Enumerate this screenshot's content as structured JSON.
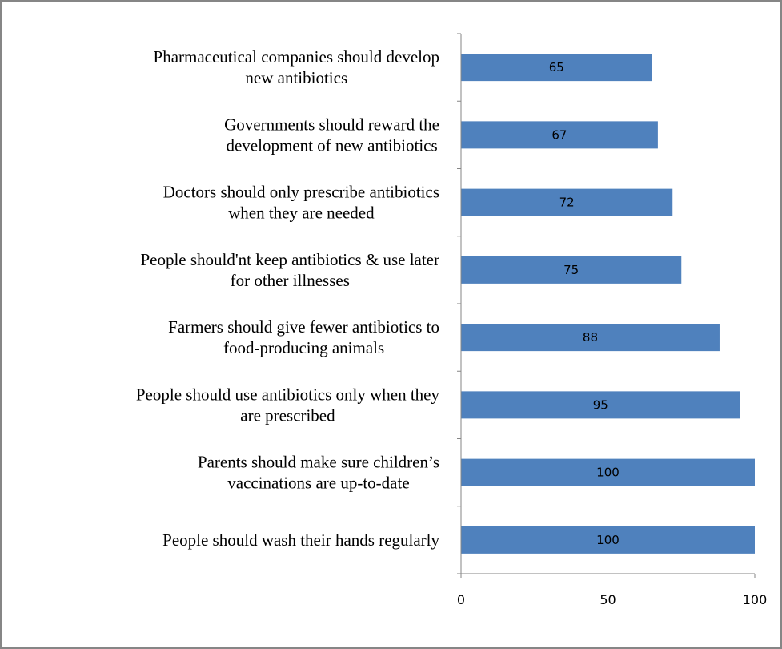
{
  "chart_data": {
    "type": "bar",
    "orientation": "horizontal",
    "title": "",
    "xlabel": "",
    "ylabel": "",
    "xlim": [
      0,
      100
    ],
    "x_ticks": [
      "0",
      "50",
      "100"
    ],
    "x_tick_values": [
      0,
      50,
      100
    ],
    "grid": false,
    "legend": "none",
    "bar_color": "#4F81BD",
    "categories": [
      [
        "Pharmaceutical companies should develop",
        "new antibiotics"
      ],
      [
        "Governments should reward the",
        "development of new antibiotics"
      ],
      [
        "Doctors should only prescribe antibiotics",
        "when they are needed"
      ],
      [
        "People should'nt keep antibiotics & use later",
        "for other illnesses"
      ],
      [
        "Farmers should give fewer antibiotics to",
        "food-producing animals"
      ],
      [
        "People should use antibiotics only when they",
        "are prescribed"
      ],
      [
        "Parents should make sure children’s",
        "vaccinations are up-to-date"
      ],
      [
        "People should wash their hands regularly"
      ]
    ],
    "values": [
      65,
      67,
      72,
      75,
      88,
      95,
      100,
      100
    ],
    "data_labels": [
      "65",
      "67",
      "72",
      "75",
      "88",
      "95",
      "100",
      "100"
    ]
  }
}
